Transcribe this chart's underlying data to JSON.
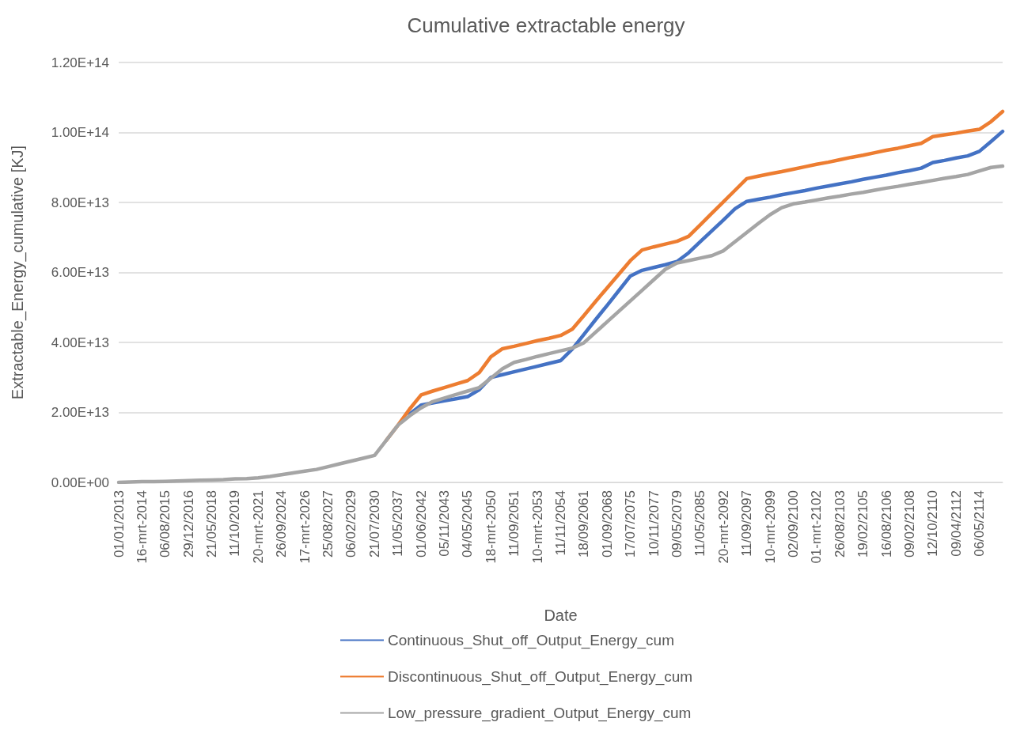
{
  "chart_data": {
    "type": "line",
    "title": "Cumulative extractable energy",
    "xlabel": "Date",
    "ylabel": "Extractable_Energy_cumulative [KJ]",
    "categories": [
      "01/01/2013",
      null,
      "16-mrt-2014",
      null,
      "06/08/2015",
      null,
      "29/12/2016",
      null,
      "21/05/2018",
      null,
      "11/10/2019",
      null,
      "20-mrt-2021",
      null,
      "26/09/2024",
      null,
      "17-mrt-2026",
      null,
      "25/08/2027",
      null,
      "06/02/2029",
      null,
      "21/07/2030",
      null,
      "11/05/2037",
      null,
      "01/06/2042",
      null,
      "05/11/2043",
      null,
      "04/05/2045",
      null,
      "18-mrt-2050",
      null,
      "11/09/2051",
      null,
      "10-mrt-2053",
      null,
      "11/11/2054",
      null,
      "18/09/2061",
      null,
      "01/09/2068",
      null,
      "17/07/2075",
      null,
      "10/11/2077",
      null,
      "09/05/2079",
      null,
      "11/05/2085",
      null,
      "20-mrt-2092",
      null,
      "11/09/2097",
      null,
      "10-mrt-2099",
      null,
      "02/09/2100",
      null,
      "01-mrt-2102",
      null,
      "26/08/2103",
      null,
      "19/02/2105",
      null,
      "16/08/2106",
      null,
      "09/02/2108",
      null,
      "12/10/2110",
      null,
      "09/04/2112",
      null,
      "06/05/2114",
      null,
      null
    ],
    "ylim": [
      0,
      120000000000000.0
    ],
    "yticks": [
      {
        "value": 0,
        "label": "0.00E+00"
      },
      {
        "value": 20000000000000.0,
        "label": "2.00E+13"
      },
      {
        "value": 40000000000000.0,
        "label": "4.00E+13"
      },
      {
        "value": 60000000000000.0,
        "label": "6.00E+13"
      },
      {
        "value": 80000000000000.0,
        "label": "8.00E+13"
      },
      {
        "value": 100000000000000.0,
        "label": "1.00E+14"
      },
      {
        "value": 120000000000000.0,
        "label": "1.20E+14"
      }
    ],
    "grid": "y",
    "legend": "bottom",
    "marker": "none",
    "line_style": "solid",
    "series": [
      {
        "name": "Continuous_Shut_off_Output_Energy_cum",
        "color": "#4472c4",
        "values": [
          null,
          null,
          null,
          null,
          null,
          null,
          null,
          null,
          null,
          null,
          null,
          null,
          null,
          null,
          null,
          null,
          null,
          null,
          null,
          null,
          null,
          null,
          null,
          null,
          null,
          19500000000000.0,
          22100000000000.0,
          22700000000000.0,
          23300000000000.0,
          23900000000000.0,
          24500000000000.0,
          26500000000000.0,
          30000000000000.0,
          30800000000000.0,
          31600000000000.0,
          32400000000000.0,
          33200000000000.0,
          34000000000000.0,
          34800000000000.0,
          38100000000000.0,
          42300000000000.0,
          46500000000000.0,
          50600000000000.0,
          54800000000000.0,
          59000000000000.0,
          60600000000000.0,
          61400000000000.0,
          62200000000000.0,
          63100000000000.0,
          65600000000000.0,
          68800000000000.0,
          71900000000000.0,
          75000000000000.0,
          78200000000000.0,
          80300000000000.0,
          80900000000000.0,
          81500000000000.0,
          82200000000000.0,
          82800000000000.0,
          83400000000000.0,
          84100000000000.0,
          84700000000000.0,
          85300000000000.0,
          85900000000000.0,
          86600000000000.0,
          87200000000000.0,
          87800000000000.0,
          88500000000000.0,
          89100000000000.0,
          89800000000000.0,
          91400000000000.0,
          92000000000000.0,
          92700000000000.0,
          93300000000000.0,
          94600000000000.0,
          97400000000000.0,
          100300000000000.0
        ]
      },
      {
        "name": "Discontinuous_Shut_off_Output_Energy_cum",
        "color": "#ed7d31",
        "values": [
          null,
          null,
          null,
          null,
          null,
          null,
          null,
          null,
          null,
          null,
          null,
          null,
          null,
          null,
          null,
          null,
          null,
          null,
          null,
          null,
          null,
          null,
          null,
          12000000000000.0,
          16300000000000.0,
          20900000000000.0,
          25000000000000.0,
          26100000000000.0,
          27100000000000.0,
          28100000000000.0,
          29100000000000.0,
          31400000000000.0,
          35900000000000.0,
          38200000000000.0,
          38900000000000.0,
          39700000000000.0,
          40500000000000.0,
          41200000000000.0,
          42000000000000.0,
          43800000000000.0,
          47700000000000.0,
          51700000000000.0,
          55600000000000.0,
          59500000000000.0,
          63400000000000.0,
          66400000000000.0,
          67300000000000.0,
          68100000000000.0,
          68900000000000.0,
          70300000000000.0,
          73600000000000.0,
          76900000000000.0,
          80200000000000.0,
          83500000000000.0,
          86800000000000.0,
          87500000000000.0,
          88200000000000.0,
          88800000000000.0,
          89500000000000.0,
          90200000000000.0,
          90900000000000.0,
          91500000000000.0,
          92200000000000.0,
          92900000000000.0,
          93500000000000.0,
          94200000000000.0,
          94900000000000.0,
          95500000000000.0,
          96200000000000.0,
          96900000000000.0,
          98800000000000.0,
          99300000000000.0,
          99800000000000.0,
          100400000000000.0,
          100900000000000.0,
          103100000000000.0,
          106000000000000.0
        ]
      },
      {
        "name": "Low_pressure_gradient_Output_Energy_cum",
        "color": "#a5a5a5",
        "values": [
          0,
          100000000000.0,
          200000000000.0,
          200000000000.0,
          300000000000.0,
          400000000000.0,
          500000000000.0,
          600000000000.0,
          700000000000.0,
          800000000000.0,
          1000000000000.0,
          1100000000000.0,
          1300000000000.0,
          1700000000000.0,
          2200000000000.0,
          2700000000000.0,
          3200000000000.0,
          3700000000000.0,
          4500000000000.0,
          5300000000000.0,
          6100000000000.0,
          6900000000000.0,
          7700000000000.0,
          12000000000000.0,
          16300000000000.0,
          19000000000000.0,
          21300000000000.0,
          23100000000000.0,
          24100000000000.0,
          25100000000000.0,
          26100000000000.0,
          27100000000000.0,
          29800000000000.0,
          32500000000000.0,
          34300000000000.0,
          35100000000000.0,
          36000000000000.0,
          36800000000000.0,
          37600000000000.0,
          38400000000000.0,
          39900000000000.0,
          42900000000000.0,
          45900000000000.0,
          48900000000000.0,
          51900000000000.0,
          54900000000000.0,
          57900000000000.0,
          60900000000000.0,
          62700000000000.0,
          63400000000000.0,
          64100000000000.0,
          64800000000000.0,
          66200000000000.0,
          68800000000000.0,
          71400000000000.0,
          74000000000000.0,
          76500000000000.0,
          78500000000000.0,
          79600000000000.0,
          80100000000000.0,
          80700000000000.0,
          81300000000000.0,
          81800000000000.0,
          82400000000000.0,
          82900000000000.0,
          83500000000000.0,
          84100000000000.0,
          84600000000000.0,
          85200000000000.0,
          85700000000000.0,
          86300000000000.0,
          86900000000000.0,
          87400000000000.0,
          88000000000000.0,
          89000000000000.0,
          90000000000000.0,
          90400000000000.0
        ]
      }
    ]
  }
}
